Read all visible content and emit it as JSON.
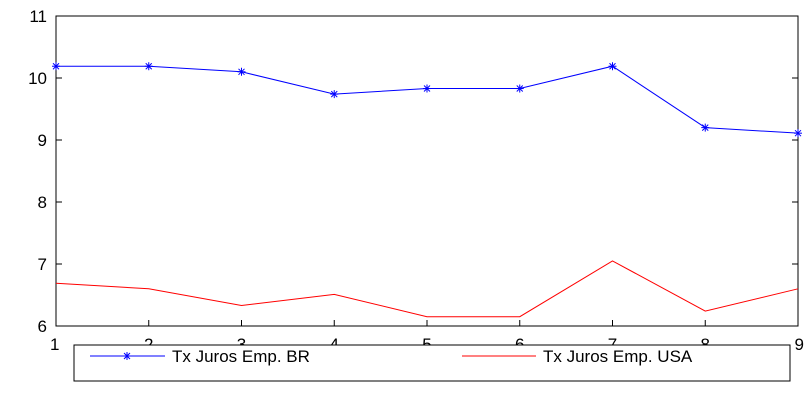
{
  "chart_data": {
    "type": "line",
    "title": "",
    "xlabel": "",
    "ylabel": "",
    "x": [
      1,
      2,
      3,
      4,
      5,
      6,
      7,
      8,
      9
    ],
    "xlim": [
      1,
      9
    ],
    "ylim": [
      6,
      11
    ],
    "yticks": [
      6,
      7,
      8,
      9,
      10,
      11
    ],
    "grid": false,
    "legend_position": "bottom",
    "series": [
      {
        "name": "Tx Juros Emp. BR",
        "color": "#0000ff",
        "marker": "asterisk",
        "values": [
          10.19,
          10.19,
          10.1,
          9.74,
          9.83,
          9.83,
          10.19,
          9.2,
          9.11
        ]
      },
      {
        "name": "Tx Juros Emp. USA",
        "color": "#ff0000",
        "marker": "none",
        "values": [
          6.69,
          6.6,
          6.33,
          6.51,
          6.15,
          6.15,
          7.05,
          6.24,
          6.6
        ]
      }
    ]
  }
}
